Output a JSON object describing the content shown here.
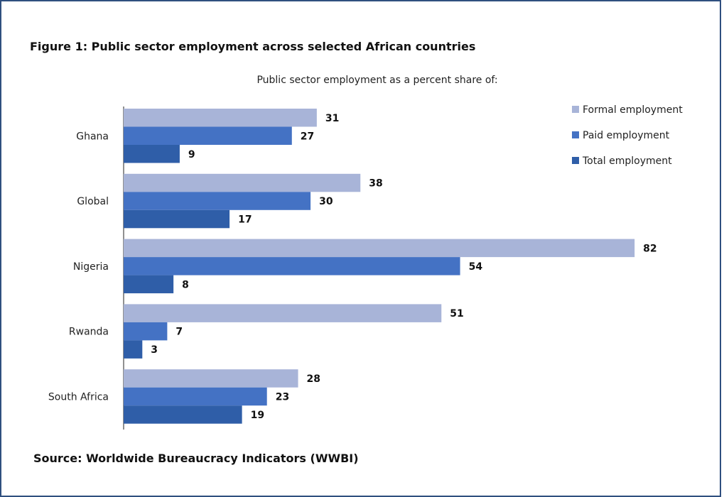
{
  "figure_title": "Figure 1: Public sector employment across selected African countries",
  "source": "Source: Worldwide Bureaucracy Indicators (WWBI)",
  "colors": {
    "formal": "#a8b4d8",
    "paid": "#4472c4",
    "total": "#2f5ea8",
    "frame": "#2f4f7f"
  },
  "chart_data": {
    "type": "bar",
    "orientation": "horizontal",
    "subtitle": "Public sector employment as a percent share of:",
    "categories": [
      "Ghana",
      "Global",
      "Nigeria",
      "Rwanda",
      "South Africa"
    ],
    "series": [
      {
        "name": "Formal employment",
        "values": [
          31,
          38,
          82,
          51,
          28
        ]
      },
      {
        "name": "Paid employment",
        "values": [
          27,
          30,
          54,
          7,
          23
        ]
      },
      {
        "name": "Total employment",
        "values": [
          9,
          17,
          8,
          3,
          19
        ]
      }
    ],
    "xlim": [
      0,
      90
    ],
    "grid": false,
    "legend": "top-right"
  }
}
